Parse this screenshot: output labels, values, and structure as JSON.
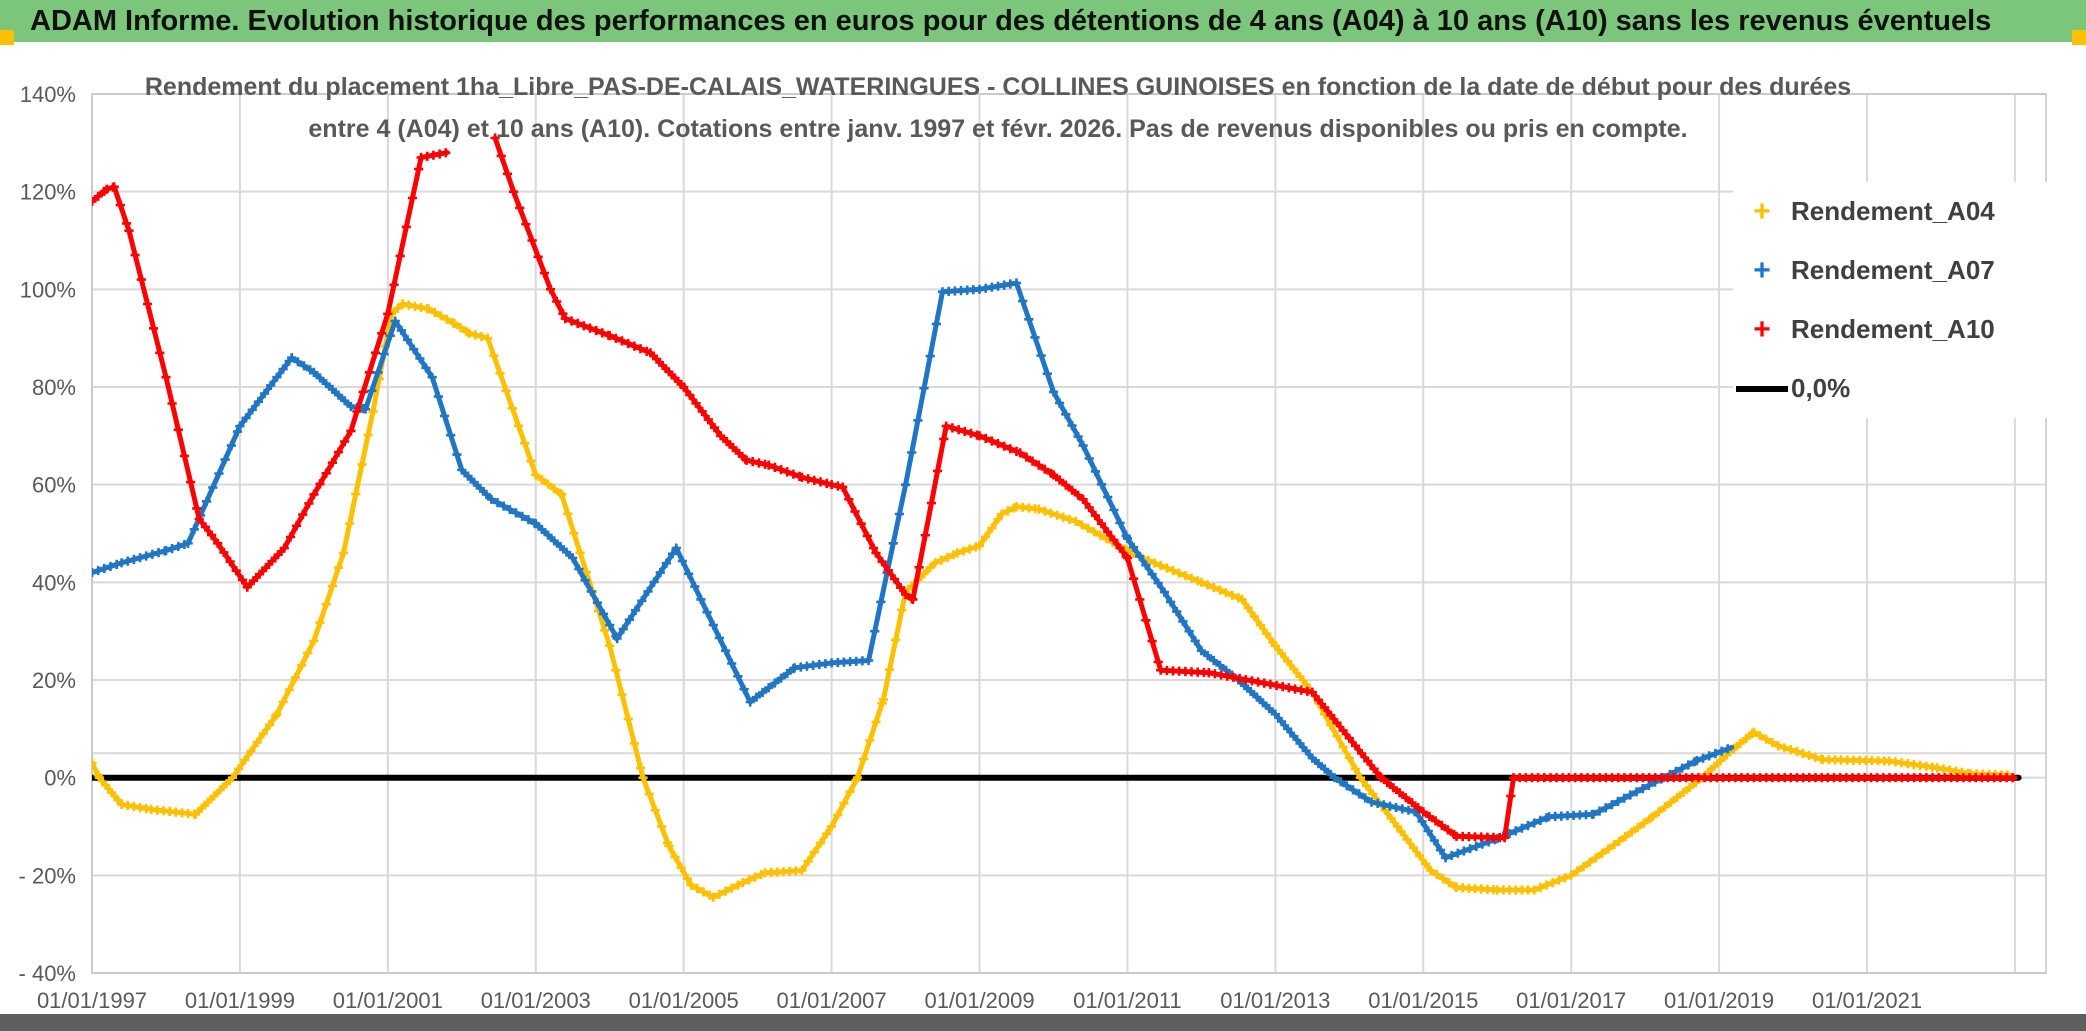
{
  "title_bar": {
    "text": "ADAM Informe. Evolution historique des performances en euros pour des détentions de 4 ans (A04) à 10 ans (A10) sans les revenus éventuels",
    "background": "#7CC67C"
  },
  "accents": {
    "gold": "#FFC000",
    "bottom_bar": "#5F5F5F"
  },
  "chart_data": {
    "type": "line",
    "title_lines": [
      "Rendement du placement 1ha_Libre_PAS-DE-CALAIS_WATERINGUES - COLLINES GUINOISES en fonction de la date de début pour des durées",
      "entre 4 (A04) et 10 ans (A10). Cotations entre janv. 1997 et févr. 2026. Pas de revenus disponibles ou pris en compte."
    ],
    "x_axis": {
      "range": [
        1997,
        2023.42
      ],
      "tick_years": [
        1997,
        1999,
        2001,
        2003,
        2005,
        2007,
        2009,
        2011,
        2013,
        2015,
        2017,
        2019,
        2021
      ],
      "tick_labels": [
        "01/01/1997",
        "01/01/1999",
        "01/01/2001",
        "01/01/2003",
        "01/01/2005",
        "01/01/2007",
        "01/01/2009",
        "01/01/2011",
        "01/01/2013",
        "01/01/2015",
        "01/01/2017",
        "01/01/2019",
        "01/01/2021"
      ],
      "gridline_years": [
        1997,
        1999,
        2001,
        2003,
        2005,
        2007,
        2009,
        2011,
        2013,
        2015,
        2017,
        2019,
        2021,
        2023
      ]
    },
    "y_axis": {
      "range": [
        -40,
        140
      ],
      "step": 20,
      "tick_values": [
        140,
        120,
        100,
        80,
        60,
        40,
        20,
        0,
        -20,
        -40
      ],
      "tick_labels": [
        "140%",
        "120%",
        "100%",
        "80%",
        "60%",
        "40%",
        "20%",
        "0%",
        "- 20%",
        "- 40%"
      ],
      "extra_line_value": 5,
      "gridline_color": "#D9D9D9"
    },
    "legend": {
      "position": "right",
      "zero_label": "0,0%"
    },
    "series": [
      {
        "name": "Rendement_A04",
        "color": "#FFC000",
        "layer": 1,
        "markers": true,
        "points": [
          [
            1997.0,
            3
          ],
          [
            1997.1,
            0
          ],
          [
            1997.4,
            -5.5
          ],
          [
            1997.8,
            -6.5
          ],
          [
            1998.4,
            -7.5
          ],
          [
            1998.9,
            0
          ],
          [
            1999.5,
            13
          ],
          [
            2000.0,
            28
          ],
          [
            2000.4,
            46
          ],
          [
            2000.8,
            75
          ],
          [
            2001.05,
            95
          ],
          [
            2001.2,
            97
          ],
          [
            2001.55,
            96
          ],
          [
            2001.9,
            93
          ],
          [
            2002.1,
            91
          ],
          [
            2002.35,
            90
          ],
          [
            2003.0,
            62
          ],
          [
            2003.35,
            58
          ],
          [
            2004.0,
            27
          ],
          [
            2004.45,
            0
          ],
          [
            2004.8,
            -14
          ],
          [
            2005.1,
            -22
          ],
          [
            2005.4,
            -24.5
          ],
          [
            2005.8,
            -21.5
          ],
          [
            2006.1,
            -19.5
          ],
          [
            2006.6,
            -19
          ],
          [
            2007.0,
            -10
          ],
          [
            2007.35,
            0
          ],
          [
            2007.7,
            16
          ],
          [
            2008.0,
            38
          ],
          [
            2008.4,
            44
          ],
          [
            2008.7,
            46
          ],
          [
            2009.0,
            47.5
          ],
          [
            2009.3,
            54
          ],
          [
            2009.5,
            55.5
          ],
          [
            2009.8,
            55
          ],
          [
            2010.3,
            52.5
          ],
          [
            2011.0,
            46.5
          ],
          [
            2011.2,
            45
          ],
          [
            2012.0,
            40
          ],
          [
            2012.55,
            36.5
          ],
          [
            2013.0,
            27
          ],
          [
            2013.5,
            17.5
          ],
          [
            2014.15,
            0
          ],
          [
            2014.7,
            -11
          ],
          [
            2015.1,
            -19
          ],
          [
            2015.45,
            -22.5
          ],
          [
            2016.0,
            -23
          ],
          [
            2016.5,
            -23
          ],
          [
            2017.0,
            -20
          ],
          [
            2017.65,
            -13
          ],
          [
            2018.1,
            -8
          ],
          [
            2018.77,
            0
          ],
          [
            2019.2,
            6
          ],
          [
            2019.47,
            9.3
          ],
          [
            2019.8,
            6.5
          ],
          [
            2020.4,
            3.7
          ],
          [
            2021.3,
            3.4
          ],
          [
            2021.95,
            2
          ],
          [
            2022.4,
            0.8
          ],
          [
            2022.95,
            0.5
          ]
        ]
      },
      {
        "name": "Rendement_A07",
        "color": "#2176C4",
        "layer": 2,
        "markers": true,
        "points": [
          [
            1997.0,
            42
          ],
          [
            1997.4,
            44
          ],
          [
            1998.0,
            46.5
          ],
          [
            1998.3,
            48
          ],
          [
            1999.0,
            72
          ],
          [
            1999.7,
            86
          ],
          [
            2000.0,
            83
          ],
          [
            2000.5,
            76
          ],
          [
            2000.7,
            75.5
          ],
          [
            2001.1,
            93.5
          ],
          [
            2001.6,
            82
          ],
          [
            2002.0,
            63
          ],
          [
            2002.4,
            57
          ],
          [
            2003.0,
            52
          ],
          [
            2003.5,
            45
          ],
          [
            2004.1,
            28.5
          ],
          [
            2004.9,
            47
          ],
          [
            2005.9,
            15.5
          ],
          [
            2006.5,
            22.5
          ],
          [
            2007.0,
            23.5
          ],
          [
            2007.5,
            24
          ],
          [
            2008.0,
            60
          ],
          [
            2008.5,
            99.5
          ],
          [
            2009.0,
            100
          ],
          [
            2009.5,
            101.3
          ],
          [
            2010.0,
            79
          ],
          [
            2010.4,
            68
          ],
          [
            2011.0,
            49
          ],
          [
            2011.5,
            38
          ],
          [
            2012.0,
            26
          ],
          [
            2012.5,
            20
          ],
          [
            2013.0,
            13
          ],
          [
            2013.5,
            4
          ],
          [
            2013.8,
            0
          ],
          [
            2014.3,
            -5
          ],
          [
            2014.9,
            -7
          ],
          [
            2015.3,
            -16.4
          ],
          [
            2016.0,
            -12.5
          ],
          [
            2016.7,
            -8
          ],
          [
            2017.3,
            -7.5
          ],
          [
            2018.25,
            0
          ],
          [
            2018.7,
            3.5
          ],
          [
            2019.17,
            6.2
          ]
        ]
      },
      {
        "name": "Rendement_A10",
        "color": "#FF0000",
        "layer": 3,
        "markers": true,
        "points": [
          [
            1997.0,
            118
          ],
          [
            1997.2,
            120.5
          ],
          [
            1997.3,
            121
          ],
          [
            1997.5,
            112
          ],
          [
            1998.0,
            82
          ],
          [
            1998.45,
            53
          ],
          [
            1998.7,
            48
          ],
          [
            1999.1,
            39
          ],
          [
            1999.6,
            47
          ],
          [
            2000.0,
            58
          ],
          [
            2000.5,
            71
          ],
          [
            2001.0,
            95
          ],
          [
            2001.45,
            127
          ],
          [
            2001.8,
            128
          ],
          [
            2002.1,
            147
          ],
          [
            2002.45,
            131
          ],
          [
            2002.7,
            120
          ],
          [
            2003.2,
            100
          ],
          [
            2003.4,
            94
          ],
          [
            2004.0,
            90.5
          ],
          [
            2004.55,
            87
          ],
          [
            2005.0,
            80
          ],
          [
            2005.5,
            70
          ],
          [
            2005.85,
            65
          ],
          [
            2006.15,
            64
          ],
          [
            2006.6,
            61.5
          ],
          [
            2007.0,
            60
          ],
          [
            2007.15,
            59.5
          ],
          [
            2007.6,
            46
          ],
          [
            2008.0,
            37.5
          ],
          [
            2008.1,
            36.5
          ],
          [
            2008.55,
            72
          ],
          [
            2009.0,
            70
          ],
          [
            2009.55,
            66.5
          ],
          [
            2010.0,
            62
          ],
          [
            2010.4,
            57
          ],
          [
            2011.0,
            45
          ],
          [
            2011.45,
            22
          ],
          [
            2012.1,
            21.5
          ],
          [
            2013.5,
            17.5
          ],
          [
            2014.43,
            0
          ],
          [
            2015.0,
            -7
          ],
          [
            2015.45,
            -12
          ],
          [
            2016.1,
            -12.3
          ],
          [
            2016.22,
            0
          ],
          [
            2023.0,
            0
          ]
        ]
      },
      {
        "name": "0,0%",
        "color": "#000000",
        "layer": 0,
        "markers": false,
        "points": [
          [
            1997.0,
            0
          ],
          [
            2023.05,
            0
          ]
        ]
      }
    ]
  }
}
